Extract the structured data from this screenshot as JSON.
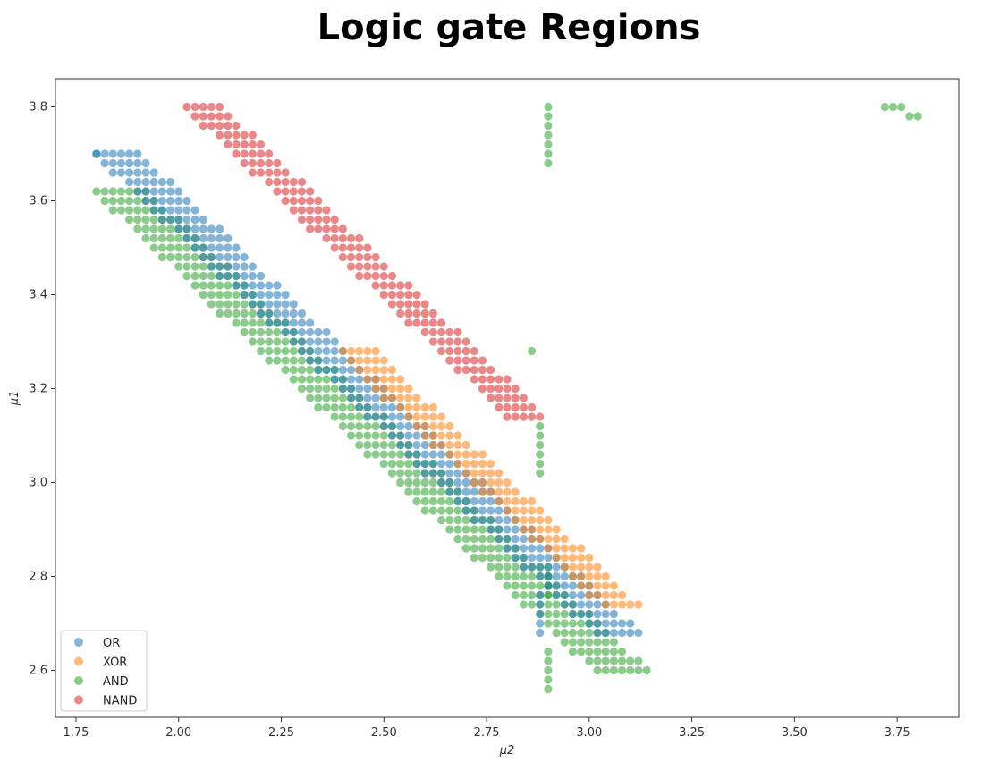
{
  "chart_data": {
    "type": "scatter",
    "title": "Logic gate Regions",
    "xlabel": "μ2",
    "ylabel": "μ1",
    "xlim": [
      1.7,
      3.9
    ],
    "ylim": [
      2.5,
      3.86
    ],
    "xticks": [
      "1.75",
      "2.00",
      "2.25",
      "2.50",
      "2.75",
      "3.00",
      "3.25",
      "3.50",
      "3.75"
    ],
    "xtick_values": [
      1.75,
      2.0,
      2.25,
      2.5,
      2.75,
      3.0,
      3.25,
      3.5,
      3.75
    ],
    "yticks": [
      "2.6",
      "2.8",
      "3.0",
      "3.2",
      "3.4",
      "3.6",
      "3.8"
    ],
    "ytick_values": [
      2.6,
      2.8,
      3.0,
      3.2,
      3.4,
      3.6,
      3.8
    ],
    "grid": false,
    "legend_position": "bottom-left",
    "series": [
      {
        "name": "OR",
        "color": "#1f77b4",
        "bands": [
          {
            "y_top": 3.7,
            "y_bottom": 2.68,
            "x_start": 1.8,
            "slope": 0.84,
            "width": 0.12
          }
        ],
        "points": [
          [
            1.8,
            3.7
          ],
          [
            2.88,
            2.76
          ],
          [
            2.88,
            2.74
          ],
          [
            2.88,
            2.72
          ],
          [
            2.88,
            2.7
          ],
          [
            2.88,
            2.68
          ]
        ]
      },
      {
        "name": "XOR",
        "color": "#ff7f0e",
        "bands": [
          {
            "y_top": 3.28,
            "y_bottom": 2.74,
            "x_start": 2.39,
            "slope": 0.84,
            "width": 0.1
          }
        ],
        "points": []
      },
      {
        "name": "AND",
        "color": "#2ca02c",
        "bands": [
          {
            "y_top": 3.62,
            "y_bottom": 2.6,
            "x_start": 1.8,
            "slope": 0.84,
            "width": 0.14
          }
        ],
        "points": [
          [
            2.9,
            3.8
          ],
          [
            2.9,
            3.78
          ],
          [
            2.9,
            3.76
          ],
          [
            2.9,
            3.74
          ],
          [
            2.9,
            3.72
          ],
          [
            2.9,
            3.7
          ],
          [
            2.9,
            3.68
          ],
          [
            2.86,
            3.28
          ],
          [
            2.88,
            3.12
          ],
          [
            2.88,
            3.1
          ],
          [
            2.88,
            3.08
          ],
          [
            2.88,
            3.06
          ],
          [
            2.88,
            3.04
          ],
          [
            2.88,
            3.02
          ],
          [
            2.9,
            2.82
          ],
          [
            2.9,
            2.8
          ],
          [
            2.9,
            2.78
          ],
          [
            2.9,
            2.76
          ],
          [
            2.9,
            2.64
          ],
          [
            2.9,
            2.62
          ],
          [
            2.9,
            2.6
          ],
          [
            2.9,
            2.58
          ],
          [
            2.9,
            2.56
          ],
          [
            3.72,
            3.8
          ],
          [
            3.74,
            3.8
          ],
          [
            3.76,
            3.8
          ],
          [
            3.78,
            3.78
          ],
          [
            3.8,
            3.78
          ]
        ]
      },
      {
        "name": "NAND",
        "color": "#d62728",
        "bands": [
          {
            "y_top": 3.8,
            "y_bottom": 3.14,
            "x_start": 2.02,
            "slope": 0.84,
            "width": 0.1
          }
        ],
        "points": []
      }
    ]
  }
}
